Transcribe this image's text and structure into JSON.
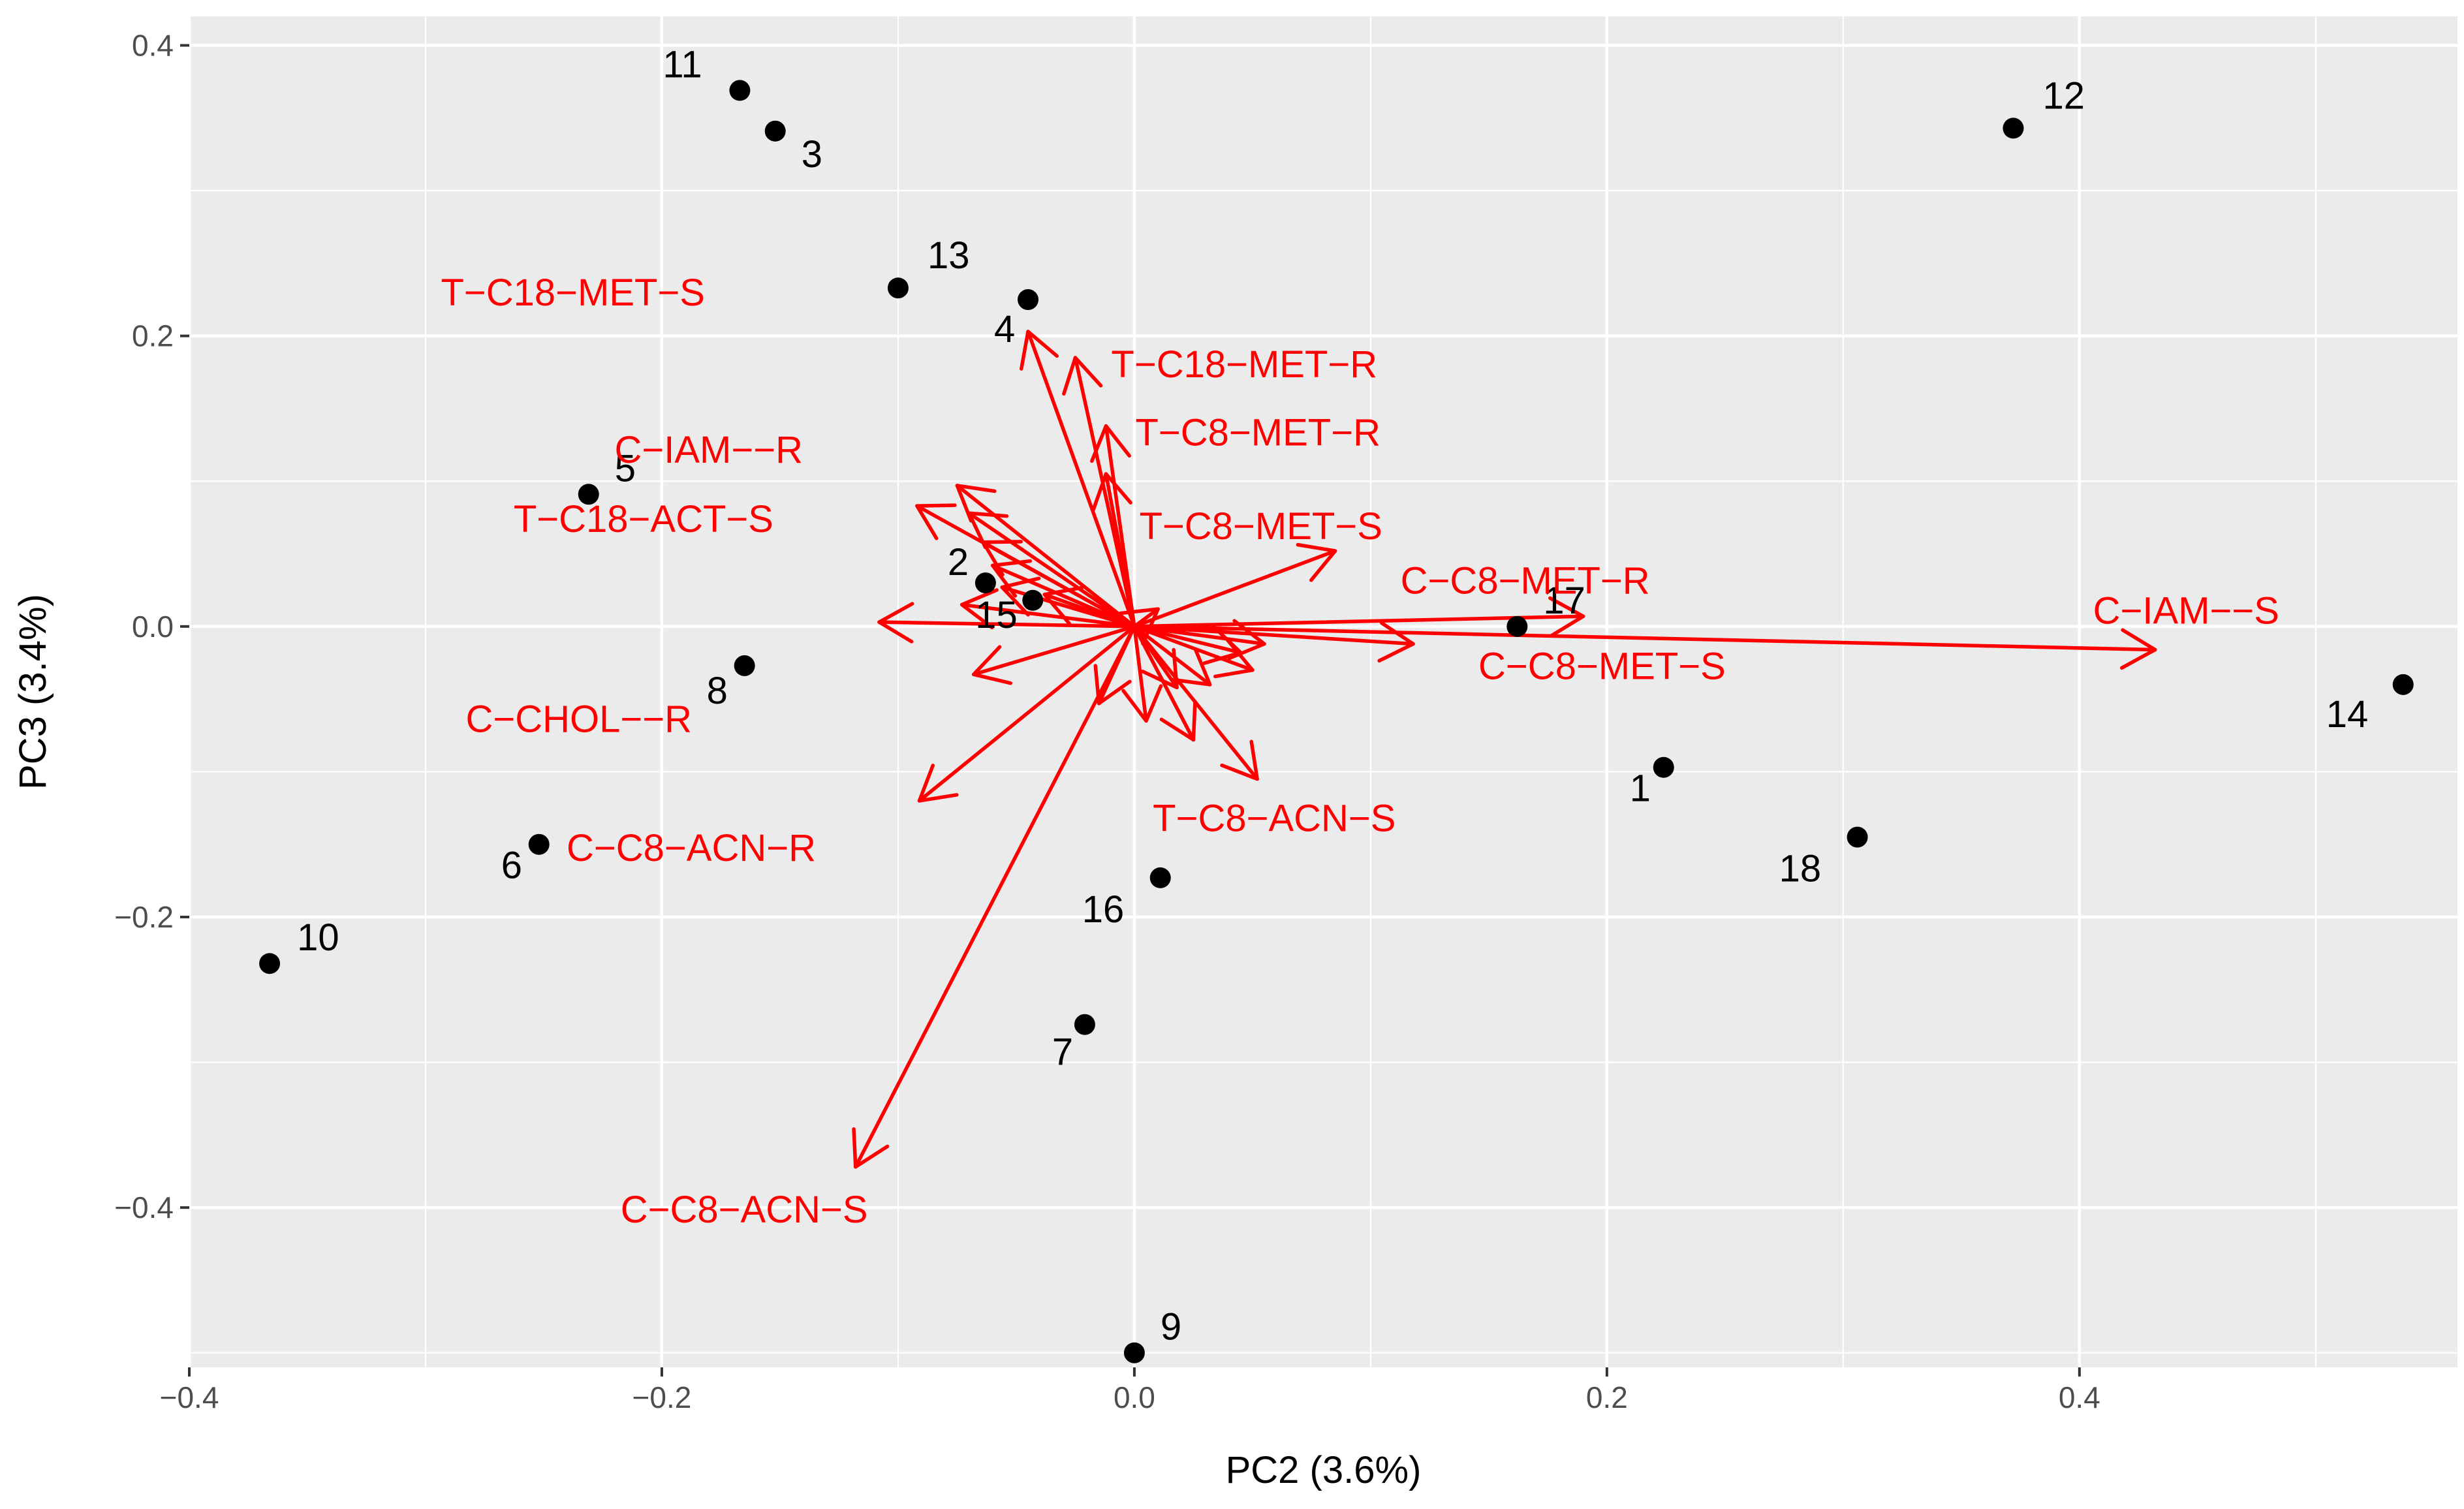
{
  "chart_data": {
    "type": "scatter",
    "subtype": "biplot",
    "title": "",
    "xlabel": "PC2 (3.6%)",
    "ylabel": "PC3 (3.4%)",
    "xlim": [
      -0.4,
      0.56
    ],
    "ylim": [
      -0.51,
      0.42
    ],
    "x_ticks": [
      -0.4,
      -0.2,
      0.0,
      0.2,
      0.4
    ],
    "x_tick_labels": [
      "−0.4",
      "−0.2",
      "0.0",
      "0.2",
      "0.4"
    ],
    "y_ticks": [
      -0.4,
      -0.2,
      0.0,
      0.2,
      0.4
    ],
    "y_tick_labels": [
      "−0.4",
      "−0.2",
      "0.0",
      "0.2",
      "0.4"
    ],
    "colors": {
      "panel": "#ebebeb",
      "grid": "#ffffff",
      "points": "#000000",
      "arrows": "#ff0000",
      "tick_text": "#4d4d4d"
    },
    "points": [
      {
        "label": "1",
        "x": 0.224,
        "y": -0.097
      },
      {
        "label": "2",
        "x": -0.063,
        "y": 0.03
      },
      {
        "label": "3",
        "x": -0.152,
        "y": 0.341
      },
      {
        "label": "4",
        "x": -0.045,
        "y": 0.225
      },
      {
        "label": "5",
        "x": -0.231,
        "y": 0.091
      },
      {
        "label": "6",
        "x": -0.252,
        "y": -0.15
      },
      {
        "label": "7",
        "x": -0.021,
        "y": -0.274
      },
      {
        "label": "8",
        "x": -0.165,
        "y": -0.027
      },
      {
        "label": "9",
        "x": 0.0,
        "y": -0.5
      },
      {
        "label": "10",
        "x": -0.366,
        "y": -0.232
      },
      {
        "label": "11",
        "x": -0.167,
        "y": 0.369
      },
      {
        "label": "12",
        "x": 0.372,
        "y": 0.343
      },
      {
        "label": "13",
        "x": -0.1,
        "y": 0.233
      },
      {
        "label": "14",
        "x": 0.537,
        "y": -0.04
      },
      {
        "label": "15",
        "x": -0.043,
        "y": 0.018
      },
      {
        "label": "16",
        "x": 0.011,
        "y": -0.173
      },
      {
        "label": "17",
        "x": 0.162,
        "y": 0.0
      },
      {
        "label": "18",
        "x": 0.306,
        "y": -0.145
      }
    ],
    "vectors": [
      {
        "label": "T−C18−MET−S",
        "x": -0.045,
        "y": 0.203
      },
      {
        "label": "T−C18−MET−R",
        "x": -0.025,
        "y": 0.185
      },
      {
        "label": "T−C8−MET−R",
        "x": -0.012,
        "y": 0.138
      },
      {
        "label": "C−IAM−−R",
        "x": -0.075,
        "y": 0.097
      },
      {
        "label": "T−C8−MET−S",
        "x": 0.085,
        "y": 0.052
      },
      {
        "label": "T−C18−ACT−S",
        "x": -0.092,
        "y": 0.083
      },
      {
        "label": "C−C8−MET−R",
        "x": 0.19,
        "y": 0.007
      },
      {
        "label": "C−IAM−−S",
        "x": 0.432,
        "y": -0.016
      },
      {
        "label": "C−C8−MET−S",
        "x": 0.118,
        "y": -0.012
      },
      {
        "label": "C−CHOL−−R",
        "x": -0.068,
        "y": -0.033
      },
      {
        "label": "C−C8−ACN−R",
        "x": -0.091,
        "y": -0.12
      },
      {
        "label": "T−C8−ACN−S",
        "x": 0.052,
        "y": -0.105
      },
      {
        "label": "C−C8−ACN−S",
        "x": -0.118,
        "y": -0.372
      },
      {
        "label": "",
        "x": -0.108,
        "y": 0.003
      },
      {
        "label": "",
        "x": -0.07,
        "y": 0.078
      },
      {
        "label": "",
        "x": -0.064,
        "y": 0.058
      },
      {
        "label": "",
        "x": -0.06,
        "y": 0.042
      },
      {
        "label": "",
        "x": -0.073,
        "y": 0.015
      },
      {
        "label": "",
        "x": -0.056,
        "y": 0.027
      },
      {
        "label": "",
        "x": -0.015,
        "y": -0.053
      },
      {
        "label": "",
        "x": 0.005,
        "y": -0.065
      },
      {
        "label": "",
        "x": 0.025,
        "y": -0.078
      },
      {
        "label": "",
        "x": 0.05,
        "y": -0.03
      },
      {
        "label": "",
        "x": 0.045,
        "y": -0.018
      },
      {
        "label": "",
        "x": 0.055,
        "y": -0.012
      },
      {
        "label": "",
        "x": 0.032,
        "y": -0.04
      },
      {
        "label": "",
        "x": 0.018,
        "y": -0.042
      },
      {
        "label": "",
        "x": -0.012,
        "y": 0.105
      },
      {
        "label": "",
        "x": -0.038,
        "y": 0.022
      },
      {
        "label": "",
        "x": 0.01,
        "y": 0.012
      }
    ]
  }
}
